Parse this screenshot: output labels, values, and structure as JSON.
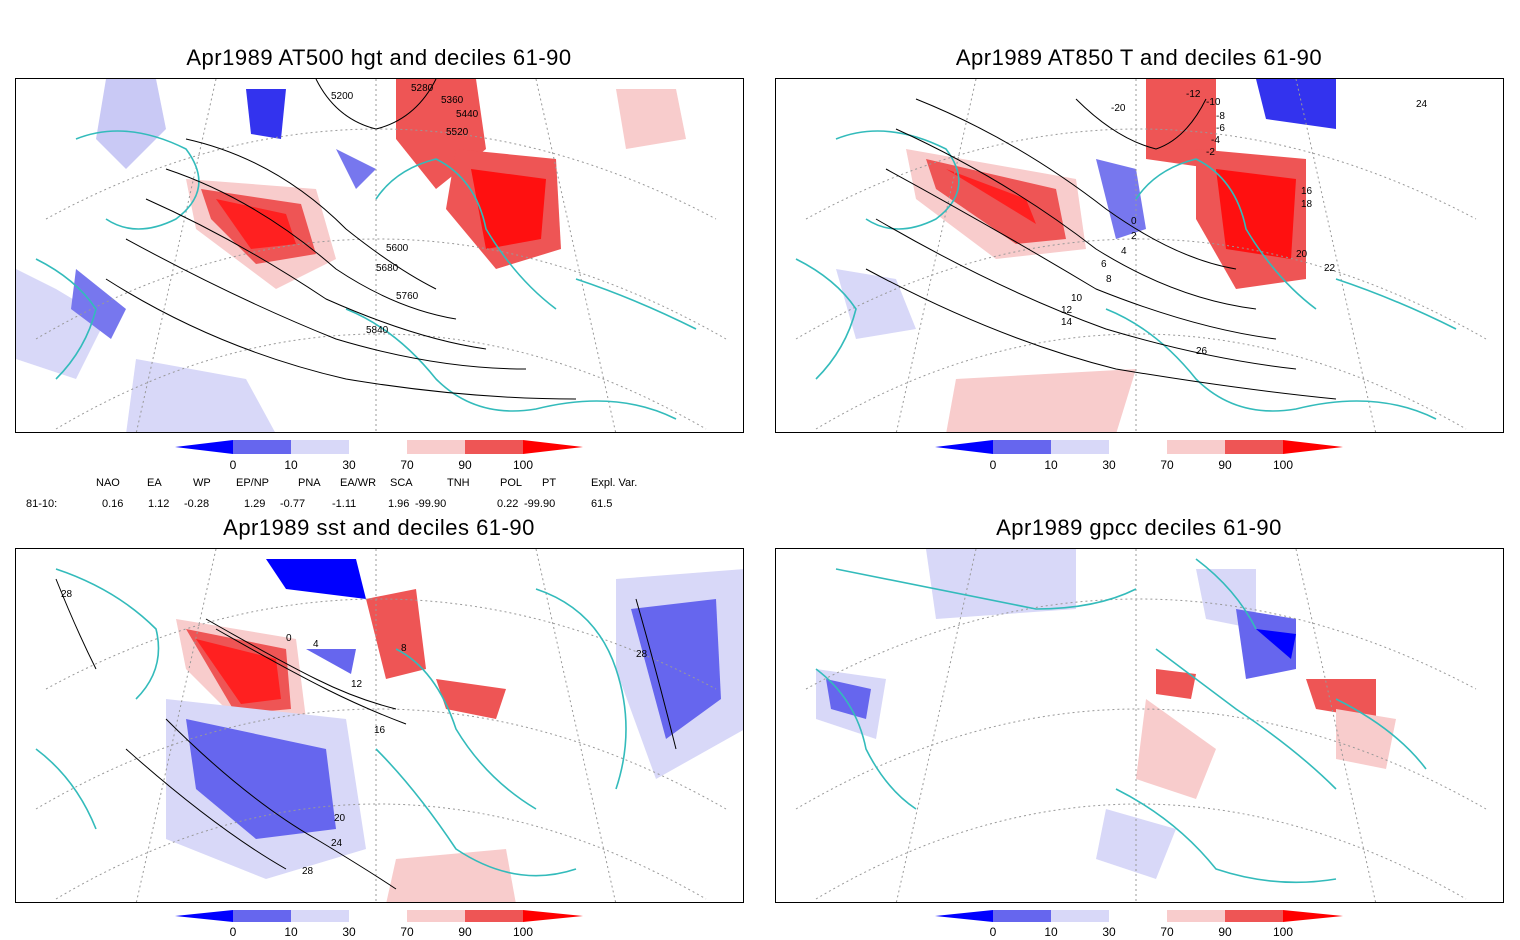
{
  "panels": {
    "top_left": {
      "title": "Apr1989 AT500 hgt and deciles 61-90",
      "contour_labels": [
        "5200",
        "5280",
        "5360",
        "5440",
        "5520",
        "5600",
        "5680",
        "5760",
        "5840"
      ]
    },
    "top_right": {
      "title": "Apr1989 AT850 T and deciles 61-90",
      "contour_labels": [
        "-20",
        "-12",
        "-10",
        "-8",
        "-6",
        "-4",
        "-2",
        "0",
        "2",
        "4",
        "6",
        "8",
        "10",
        "12",
        "14",
        "16",
        "18",
        "20",
        "22",
        "24",
        "26"
      ]
    },
    "bottom_left": {
      "title": "Apr1989 sst and deciles 61-90",
      "contour_labels": [
        "28",
        "0",
        "4",
        "8",
        "12",
        "16",
        "20",
        "24",
        "28",
        "28"
      ]
    },
    "bottom_right": {
      "title": "Apr1989 gpcc deciles 61-90"
    }
  },
  "colorbar": {
    "labels": [
      "0",
      "10",
      "30",
      "70",
      "90",
      "100"
    ],
    "colors": [
      "#0000ff",
      "#6666ee",
      "#d8d8f8",
      "#ffffff",
      "#f8cccc",
      "#ee5555",
      "#ff0000"
    ]
  },
  "teleconnections": {
    "headers": [
      "NAO",
      "EA",
      "WP",
      "EP/NP",
      "PNA",
      "EA/WR",
      "SCA",
      "TNH",
      "POL",
      "PT",
      "Expl. Var."
    ],
    "row_label": "81-10:",
    "values": [
      "0.16",
      "1.12",
      "-0.28",
      "1.29",
      "-0.77",
      "-1.11",
      "1.96",
      "-99.90",
      "0.22",
      "-99.90",
      "61.5"
    ]
  },
  "colors": {
    "coast": "#33bbbb",
    "grid": "#999999",
    "contour": "#000000"
  }
}
